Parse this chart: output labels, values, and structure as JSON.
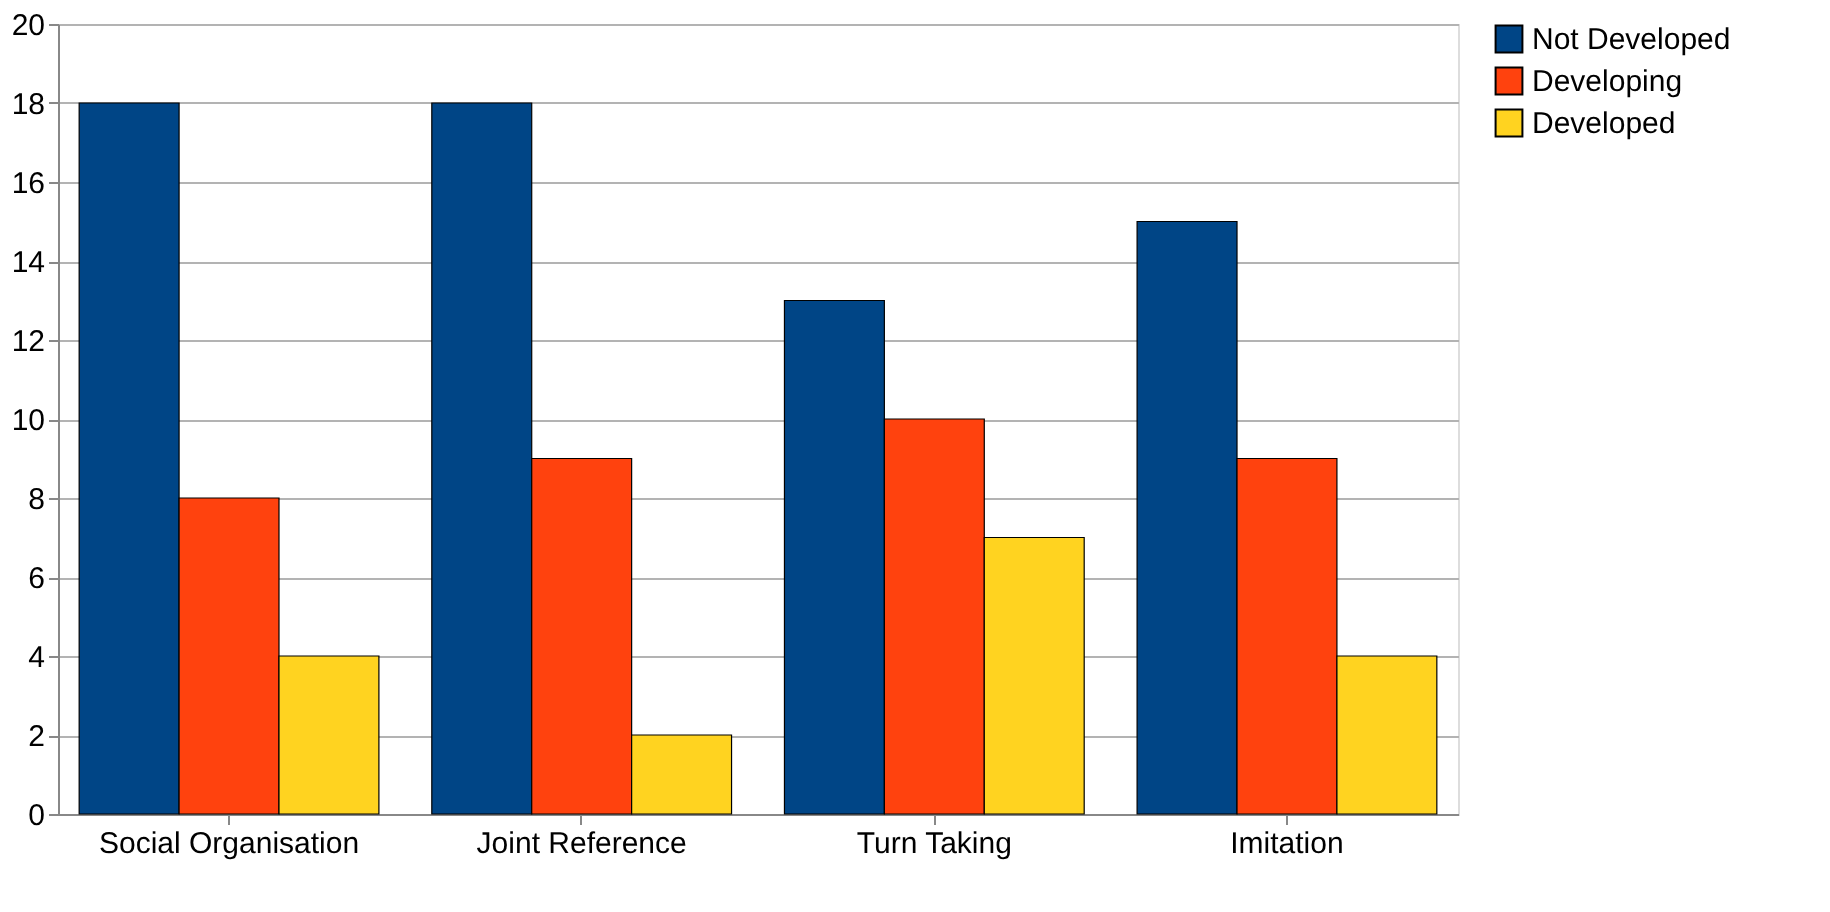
{
  "chart_data": {
    "type": "bar",
    "categories": [
      "Social Organisation",
      "Joint Reference",
      "Turn Taking",
      "Imitation"
    ],
    "series": [
      {
        "name": "Not Developed",
        "color": "#004586",
        "values": [
          18,
          18,
          13,
          15
        ]
      },
      {
        "name": "Developing",
        "color": "#ff420e",
        "values": [
          8,
          9,
          10,
          9
        ]
      },
      {
        "name": "Developed",
        "color": "#ffd320",
        "values": [
          4,
          2,
          7,
          4
        ]
      }
    ],
    "ylim": [
      0,
      20
    ],
    "yticks": [
      0,
      2,
      4,
      6,
      8,
      10,
      12,
      14,
      16,
      18,
      20
    ],
    "grid": "y",
    "legend": "right"
  }
}
